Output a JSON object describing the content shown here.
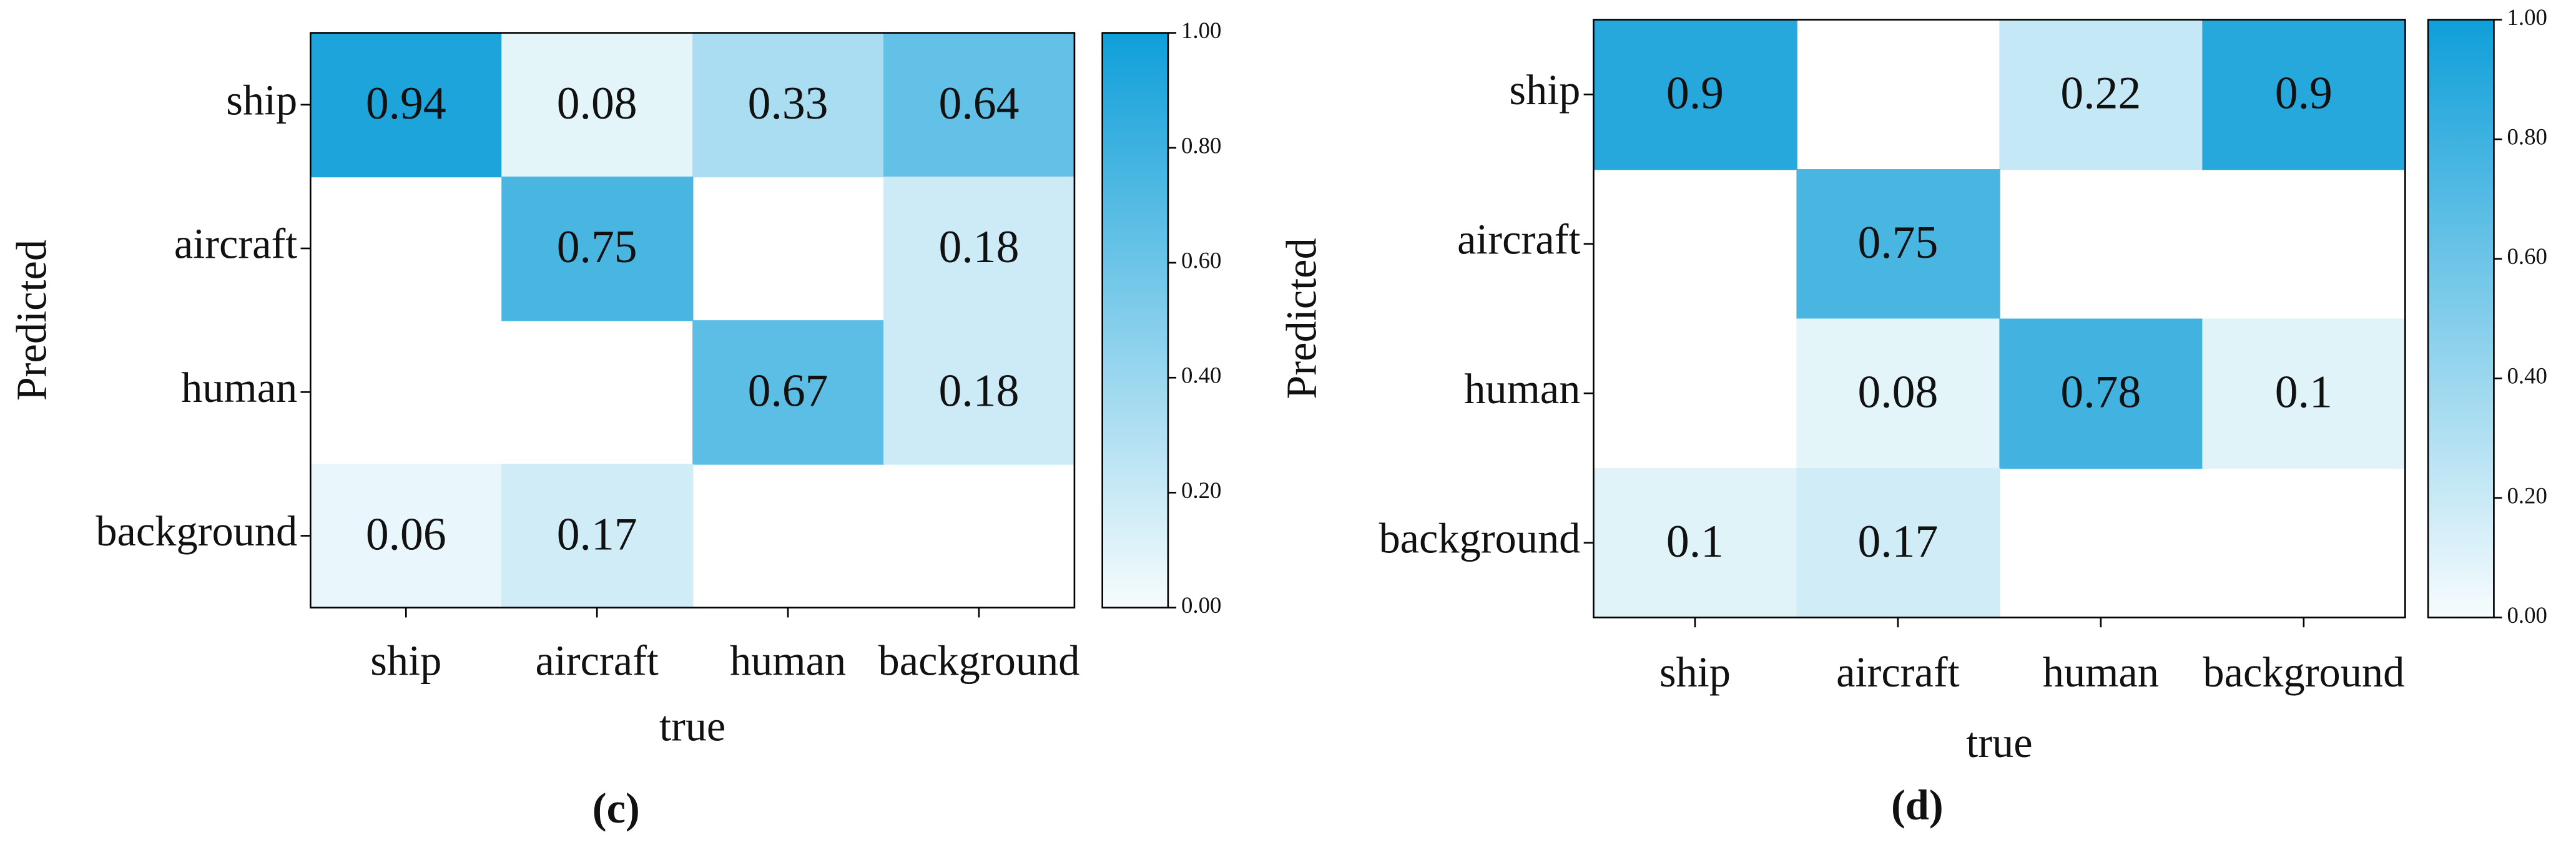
{
  "chart_data": [
    {
      "type": "heatmap",
      "x_label": "true",
      "y_label": "Predicted",
      "caption": "(c)",
      "x_categories": [
        "ship",
        "aircraft",
        "human",
        "background"
      ],
      "y_categories": [
        "ship",
        "aircraft",
        "human",
        "background"
      ],
      "values": [
        [
          0.94,
          0.08,
          0.33,
          0.64
        ],
        [
          null,
          0.75,
          null,
          0.18
        ],
        [
          null,
          null,
          0.67,
          0.18
        ],
        [
          0.06,
          0.17,
          null,
          null
        ]
      ],
      "colormap": [
        "#f7fcfd",
        "#0f9fd9"
      ],
      "clim": [
        0,
        1
      ],
      "cticks": [
        {
          "value": 0,
          "label": "0.00"
        },
        {
          "value": 0.2,
          "label": "0.20"
        },
        {
          "value": 0.4,
          "label": "0.40"
        },
        {
          "value": 0.6,
          "label": "0.60"
        },
        {
          "value": 0.8,
          "label": "0.80"
        },
        {
          "value": 1,
          "label": "1.00"
        }
      ]
    },
    {
      "type": "heatmap",
      "x_label": "true",
      "y_label": "Predicted",
      "caption": "(d)",
      "x_categories": [
        "ship",
        "aircraft",
        "human",
        "background"
      ],
      "y_categories": [
        "ship",
        "aircraft",
        "human",
        "background"
      ],
      "values": [
        [
          0.9,
          null,
          0.22,
          0.9
        ],
        [
          null,
          0.75,
          null,
          null
        ],
        [
          null,
          0.08,
          0.78,
          0.1
        ],
        [
          0.1,
          0.17,
          null,
          null
        ]
      ],
      "colormap": [
        "#f7fcfd",
        "#0f9fd9"
      ],
      "clim": [
        0,
        1
      ],
      "cticks": [
        {
          "value": 0,
          "label": "0.00"
        },
        {
          "value": 0.2,
          "label": "0.20"
        },
        {
          "value": 0.4,
          "label": "0.40"
        },
        {
          "value": 0.6,
          "label": "0.60"
        },
        {
          "value": 0.8,
          "label": "0.80"
        },
        {
          "value": 1,
          "label": "1.00"
        }
      ]
    }
  ]
}
